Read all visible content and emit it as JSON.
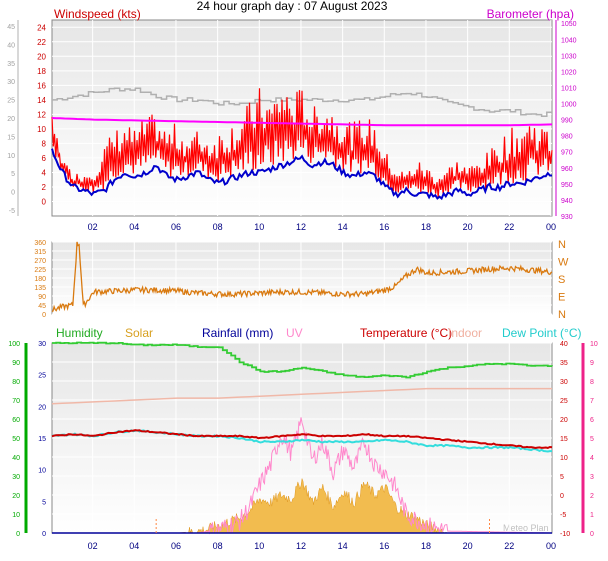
{
  "title": "24 hour graph day : 07 August 2023",
  "colors": {
    "wind": "#ff0000",
    "gust_line": "#0000cc",
    "baro": "#ff00ff",
    "avg_wind": "#b0b0b0",
    "dir": "#d97a10",
    "humidity": "#33cc33",
    "solar": "#f0b030",
    "rainfall": "#000099",
    "uv": "#ff88cc",
    "temperature": "#cc0000",
    "indoor": "#f0b8a8",
    "dewpoint": "#33dddd",
    "green_axis": "#00aa00",
    "pink_axis": "#ee2288"
  },
  "chart_data": [
    {
      "type": "line",
      "ylabel": "Windspeed (kts)",
      "y2label": "Barometer (hpa)",
      "xticks": [
        "02",
        "04",
        "06",
        "08",
        "10",
        "12",
        "14",
        "16",
        "18",
        "20",
        "22",
        "00"
      ],
      "ylim": [
        -2,
        25
      ],
      "yticks_left_outer": [
        "45",
        "40",
        "35",
        "30",
        "25",
        "20",
        "15",
        "10",
        "5",
        "0",
        "-5"
      ],
      "yticks_left": [
        "24",
        "22",
        "20",
        "18",
        "16",
        "14",
        "12",
        "10",
        "8",
        "6",
        "4",
        "2",
        "0"
      ],
      "yticks_right": [
        "1050",
        "1040",
        "1030",
        "1020",
        "1010",
        "1000",
        "990",
        "980",
        "970",
        "960",
        "950",
        "940",
        "930"
      ],
      "y2lim": [
        930,
        1052
      ],
      "series": [
        {
          "role": "gust",
          "x": [
            0,
            0.5,
            1,
            1.5,
            2,
            2.5,
            3,
            3.5,
            4,
            4.5,
            5,
            5.5,
            6,
            6.5,
            7,
            7.5,
            8,
            8.5,
            9,
            9.5,
            10,
            10.5,
            11,
            11.5,
            12,
            12.5,
            13,
            13.5,
            14,
            14.5,
            15,
            15.5,
            16,
            16.5,
            17,
            17.5,
            18,
            18.5,
            19,
            19.5,
            20,
            20.5,
            21,
            21.5,
            22,
            22.5,
            23,
            23.5,
            24
          ],
          "values": [
            12,
            6,
            4,
            4,
            5,
            8,
            10,
            11,
            10,
            12,
            12,
            10,
            11,
            9,
            10,
            9,
            10,
            11,
            12,
            14,
            16,
            14,
            17,
            15,
            16,
            13,
            14,
            13,
            12,
            11,
            12,
            11,
            7,
            5,
            4,
            6,
            5,
            4,
            5,
            6,
            5,
            6,
            7,
            9,
            10,
            11,
            12,
            11,
            9
          ]
        },
        {
          "role": "speed",
          "x": [
            0,
            0.5,
            1,
            1.5,
            2,
            2.5,
            3,
            3.5,
            4,
            4.5,
            5,
            5.5,
            6,
            6.5,
            7,
            7.5,
            8,
            8.5,
            9,
            9.5,
            10,
            10.5,
            11,
            11.5,
            12,
            12.5,
            13,
            13.5,
            14,
            14.5,
            15,
            15.5,
            16,
            16.5,
            17,
            17.5,
            18,
            18.5,
            19,
            19.5,
            20,
            20.5,
            21,
            21.5,
            22,
            22.5,
            23,
            23.5,
            24
          ],
          "values": [
            7,
            4,
            2,
            1.5,
            1,
            1.5,
            3,
            4,
            3.5,
            4,
            5,
            3.5,
            3,
            3.5,
            4,
            3,
            2.5,
            3,
            3.5,
            4,
            4,
            4.5,
            5,
            5.5,
            6,
            5,
            5.5,
            5,
            4,
            3.5,
            4,
            3.5,
            2,
            1,
            1.5,
            1,
            1,
            0.5,
            1,
            1.5,
            1,
            1.5,
            2,
            2,
            2.5,
            2.5,
            3,
            3.5,
            4
          ]
        },
        {
          "role": "average",
          "x": [
            0,
            1,
            2,
            3,
            4,
            5,
            6,
            7,
            8,
            9,
            10,
            11,
            12,
            13,
            14,
            15,
            16,
            17,
            18,
            19,
            20,
            21,
            22,
            23,
            24
          ],
          "values": [
            14,
            14.5,
            15,
            15.5,
            15.5,
            14.5,
            14,
            14,
            13.5,
            13.5,
            14,
            14,
            14,
            14,
            14,
            14,
            14.5,
            15,
            14.5,
            13.5,
            13,
            12.5,
            12.5,
            12,
            12
          ]
        },
        {
          "role": "barometer",
          "x": [
            0,
            2,
            4,
            6,
            8,
            10,
            12,
            14,
            16,
            18,
            20,
            22,
            24
          ],
          "values": [
            991,
            990,
            989.5,
            989,
            988.5,
            988,
            987.5,
            987,
            986.5,
            986.5,
            986.5,
            986.5,
            987
          ]
        }
      ]
    },
    {
      "type": "line",
      "yticks": [
        "360",
        "315",
        "270",
        "225",
        "180",
        "135",
        "90",
        "45",
        "0"
      ],
      "ylim": [
        0,
        360
      ],
      "compass": [
        "N",
        "W",
        "S",
        "E",
        "N"
      ],
      "series": [
        {
          "role": "direction",
          "x": [
            0,
            0.5,
            1,
            1.2,
            1.3,
            1.5,
            2,
            3,
            4,
            5,
            6,
            7,
            8,
            9,
            10,
            11,
            12,
            13,
            14,
            15,
            15.5,
            16,
            16.5,
            17,
            17.5,
            18,
            19,
            20,
            21,
            22,
            23,
            24
          ],
          "values": [
            20,
            35,
            45,
            350,
            350,
            40,
            110,
            115,
            120,
            120,
            115,
            105,
            100,
            100,
            105,
            110,
            110,
            105,
            100,
            100,
            110,
            120,
            140,
            190,
            225,
            205,
            210,
            215,
            225,
            230,
            220,
            210
          ]
        }
      ]
    },
    {
      "type": "line",
      "legend": [
        "Humidity",
        "Solar",
        "Rainfall (mm)",
        "UV",
        "Temperature (°C)",
        "Indoor",
        "Dew Point (°C)"
      ],
      "yticks_green": [
        "100",
        "90",
        "80",
        "70",
        "60",
        "50",
        "40",
        "30",
        "20",
        "10",
        "0"
      ],
      "yticks_left": [
        "30",
        "25",
        "20",
        "15",
        "10",
        "5",
        "0"
      ],
      "yticks_right": [
        "40",
        "35",
        "30",
        "25",
        "20",
        "15",
        "10",
        "5",
        "0",
        "-5",
        "-10"
      ],
      "yticks_pink": [
        "10",
        "9",
        "8",
        "7",
        "6",
        "5",
        "4",
        "3",
        "2",
        "1",
        "0"
      ],
      "ylim": [
        -10,
        40
      ],
      "footnote": "Meteo Plan",
      "series": [
        {
          "name": "Humidity",
          "x": [
            0,
            1,
            2,
            3,
            4,
            5,
            6,
            7,
            8,
            9,
            10,
            11,
            12,
            13,
            14,
            15,
            16,
            17,
            18,
            19,
            20,
            21,
            22,
            23,
            24
          ],
          "values": [
            100,
            100,
            100,
            100,
            99,
            99,
            99,
            98,
            98,
            90,
            85,
            85,
            87,
            85,
            83,
            82,
            83,
            82,
            85,
            87,
            88,
            89,
            89,
            88,
            88
          ]
        },
        {
          "name": "Temperature (°C)",
          "x": [
            0,
            1,
            2,
            3,
            4,
            5,
            6,
            7,
            8,
            9,
            10,
            11,
            12,
            13,
            14,
            15,
            16,
            17,
            18,
            19,
            20,
            21,
            22,
            23,
            24
          ],
          "values": [
            15.5,
            16,
            15.5,
            16.5,
            17,
            16.5,
            16,
            15.5,
            15.5,
            15.5,
            15,
            15.5,
            16,
            15.5,
            15.5,
            16,
            15.5,
            15.5,
            15,
            14.5,
            14,
            13.5,
            13,
            12.5,
            12.5
          ]
        },
        {
          "name": "Dew Point (°C)",
          "x": [
            0,
            1,
            2,
            3,
            4,
            5,
            6,
            7,
            8,
            9,
            10,
            11,
            12,
            13,
            14,
            15,
            16,
            17,
            18,
            19,
            20,
            21,
            22,
            23,
            24
          ],
          "values": [
            15.5,
            16,
            15.5,
            16.5,
            17,
            16.5,
            16,
            15.5,
            15.5,
            15,
            14,
            14,
            14.5,
            14,
            14,
            14,
            14.5,
            14,
            13,
            13,
            12.5,
            12.5,
            12.5,
            12,
            11.5
          ]
        },
        {
          "name": "Indoor",
          "x": [
            0,
            2,
            4,
            6,
            8,
            10,
            12,
            14,
            16,
            18,
            20,
            22,
            24
          ],
          "values": [
            24,
            24.5,
            25,
            25.5,
            25.5,
            26,
            26.5,
            27,
            27.5,
            28,
            28,
            28,
            28
          ]
        },
        {
          "name": "Solar",
          "x": [
            0,
            5,
            6,
            7,
            7.5,
            8,
            8.5,
            9,
            9.5,
            10,
            10.5,
            11,
            11.5,
            12,
            12.5,
            13,
            13.5,
            14,
            14.5,
            15,
            15.5,
            16,
            16.5,
            17,
            17.5,
            18,
            18.5,
            19,
            24
          ],
          "values": [
            -10,
            -10,
            -10,
            -9.5,
            -9,
            -8,
            -7,
            -6,
            -4,
            -1,
            -2,
            0,
            -1,
            4,
            -2,
            2,
            -3,
            1,
            -2,
            3,
            0,
            2,
            -3,
            -5,
            -6,
            -8,
            -9,
            -10,
            -10
          ]
        },
        {
          "name": "UV",
          "x": [
            0,
            7,
            8,
            9,
            9.5,
            10,
            10.5,
            11,
            11.5,
            12,
            12.5,
            13,
            13.5,
            14,
            14.5,
            15,
            15.5,
            16,
            16.5,
            17,
            18,
            19,
            24
          ],
          "values": [
            -10,
            -10,
            -9,
            -7,
            -3,
            3,
            8,
            16,
            11,
            20,
            9,
            14,
            6,
            12,
            7,
            14,
            8,
            6,
            2,
            -5,
            -8,
            -9.5,
            -10
          ]
        },
        {
          "name": "Rainfall (mm)",
          "x": [
            0,
            24
          ],
          "values": [
            0,
            0
          ]
        }
      ]
    }
  ]
}
